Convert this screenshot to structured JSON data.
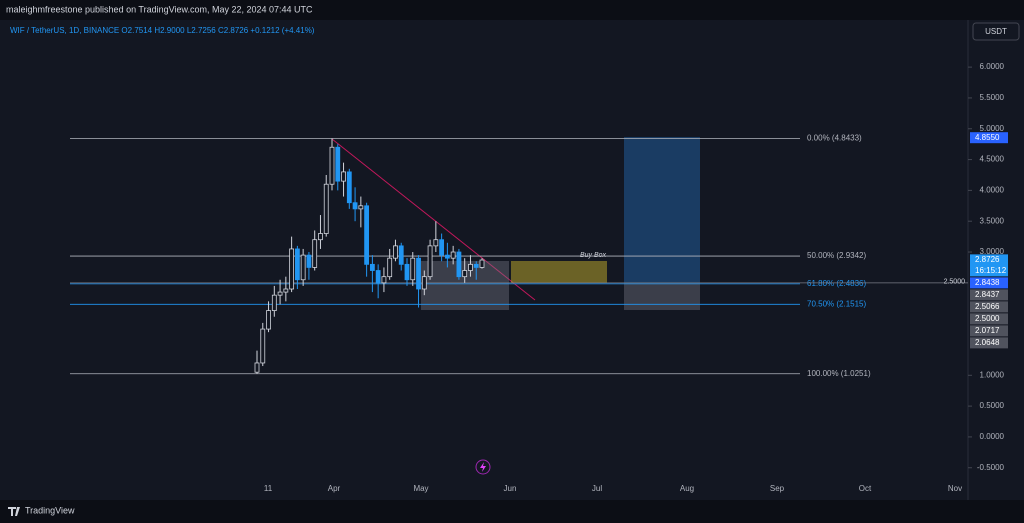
{
  "header": {
    "publisher": "maleighmfreestone published on TradingView.com, May 22, 2024 07:44 UTC",
    "brand": "TradingView"
  },
  "chart_data": {
    "type": "candlestick",
    "title": "WIF / TetherUS, 1D, BINANCE  O2.7514 H2.9000 L2.7256 C2.8726 +0.1212 (+4.41%)",
    "currency": "USDT",
    "up_color": "#d1d4dc",
    "down_color": "#2196f3",
    "open": [
      1.05,
      1.2,
      1.75,
      2.05,
      2.3,
      2.35,
      2.4,
      3.05,
      2.55,
      2.95,
      2.75,
      3.2,
      3.3,
      4.1,
      4.7,
      4.15,
      4.3,
      3.8,
      3.7,
      3.75,
      2.8,
      2.7,
      2.5,
      2.6,
      2.9,
      3.1,
      2.8,
      2.55,
      2.9,
      2.4,
      2.6,
      3.1,
      3.2,
      2.95,
      2.9,
      3.0,
      2.6,
      2.7,
      2.8,
      2.75
    ],
    "high": [
      1.4,
      1.85,
      2.2,
      2.45,
      2.55,
      2.6,
      3.25,
      3.1,
      3.05,
      3.0,
      3.35,
      3.6,
      4.25,
      4.84,
      4.75,
      4.45,
      4.35,
      4.05,
      3.9,
      3.8,
      2.95,
      2.8,
      2.75,
      3.05,
      3.2,
      3.15,
      2.9,
      3.0,
      2.95,
      2.7,
      3.2,
      3.5,
      3.3,
      3.15,
      3.1,
      3.05,
      2.9,
      2.95,
      2.85,
      2.9
    ],
    "low": [
      1.03,
      1.15,
      1.7,
      1.95,
      2.15,
      2.2,
      2.35,
      2.4,
      2.45,
      2.55,
      2.7,
      3.05,
      3.25,
      4.0,
      4.0,
      3.9,
      3.7,
      3.5,
      3.4,
      2.6,
      2.35,
      2.25,
      2.35,
      2.55,
      2.85,
      2.7,
      2.45,
      2.45,
      2.1,
      2.3,
      2.55,
      3.0,
      2.85,
      2.75,
      2.8,
      2.55,
      2.5,
      2.6,
      2.55,
      2.73
    ],
    "close": [
      1.2,
      1.75,
      2.05,
      2.3,
      2.35,
      2.4,
      3.05,
      2.55,
      2.95,
      2.75,
      3.2,
      3.3,
      4.1,
      4.7,
      4.15,
      4.3,
      3.8,
      3.7,
      3.75,
      2.8,
      2.7,
      2.5,
      2.6,
      2.9,
      3.1,
      2.8,
      2.55,
      2.9,
      2.4,
      2.6,
      3.1,
      3.2,
      2.95,
      2.9,
      3.0,
      2.6,
      2.7,
      2.8,
      2.75,
      2.87
    ],
    "ylim": [
      -0.78,
      6.44
    ],
    "yticks": [
      {
        "value": 6,
        "label": "6.0000"
      },
      {
        "value": 5.5,
        "label": "5.5000"
      },
      {
        "value": 5,
        "label": "5.0000"
      },
      {
        "value": 4.5,
        "label": "4.5000"
      },
      {
        "value": 4,
        "label": "4.0000"
      },
      {
        "value": 3.5,
        "label": "3.5000"
      },
      {
        "value": 3,
        "label": "3.0000"
      },
      {
        "value": 1,
        "label": "1.0000"
      },
      {
        "value": 0.5,
        "label": "0.5000"
      },
      {
        "value": 0,
        "label": "0.0000"
      },
      {
        "value": -0.5,
        "label": "-0.5000"
      }
    ],
    "xticks": [
      "11",
      "Apr",
      "May",
      "Jun",
      "Jul",
      "Aug",
      "Sep",
      "Oct",
      "Nov"
    ],
    "fib_levels": [
      {
        "value": 4.8433,
        "label": "0.00% (4.8433)",
        "color": "#b2b5be"
      },
      {
        "value": 2.9342,
        "label": "50.00% (2.9342)",
        "color": "#b2b5be"
      },
      {
        "value": 2.4836,
        "label": "61.80% (2.4836)",
        "color": "#2196f3"
      },
      {
        "value": 2.1515,
        "label": "70.50% (2.1515)",
        "color": "#2196f3"
      },
      {
        "value": 1.0251,
        "label": "100.00% (1.0251)",
        "color": "#b2b5be"
      }
    ],
    "hline": {
      "value": 2.5,
      "label": "2.5000"
    },
    "box_label": "Buy Box",
    "price_tags": [
      {
        "value": 4.855,
        "label": "4.8550",
        "color": "#2962ff"
      },
      {
        "value": 2.8726,
        "label": "2.8726",
        "sub": "16:15:12",
        "color": "#2196f3"
      },
      {
        "value": 2.8438,
        "label": "2.8438",
        "color": "#2962ff"
      },
      {
        "value": 2.8437,
        "label": "2.8437",
        "color": "#50535e"
      },
      {
        "value": 2.5066,
        "label": "2.5066",
        "color": "#50535e"
      },
      {
        "value": 2.5,
        "label": "2.5000",
        "color": "#50535e"
      },
      {
        "value": 2.0717,
        "label": "2.0717",
        "color": "#50535e"
      },
      {
        "value": 2.0648,
        "label": "2.0648",
        "color": "#50535e"
      }
    ]
  }
}
